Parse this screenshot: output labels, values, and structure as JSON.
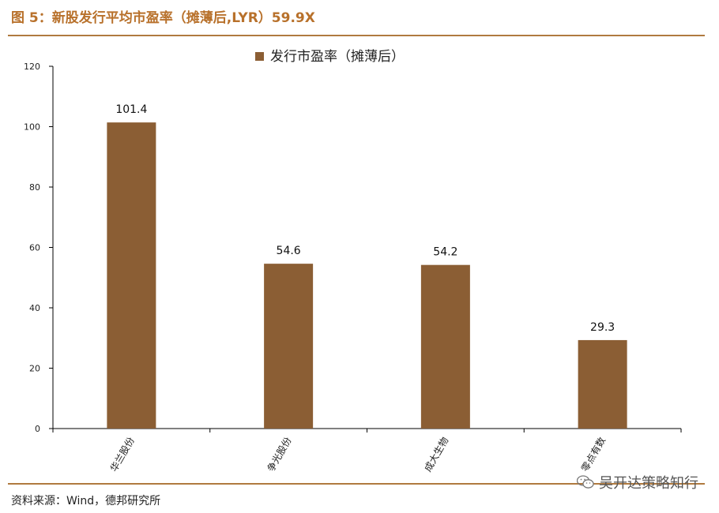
{
  "figure_title": "图 5：新股发行平均市盈率（摊薄后,LYR）59.9X",
  "source_text": "资料来源：Wind，德邦研究所",
  "watermark_text": "吴开达策略知行",
  "colors": {
    "bar": "#8b5e34",
    "title": "#b8712b",
    "rule": "#b07a3f",
    "axis": "#000000"
  },
  "chart_data": {
    "type": "bar",
    "categories": [
      "华兰股份",
      "争光股份",
      "成大生物",
      "零点有数"
    ],
    "series": [
      {
        "name": "发行市盈率（摊薄后）",
        "values": [
          101.4,
          54.6,
          54.2,
          29.3
        ]
      }
    ],
    "data_labels": [
      "101.4",
      "54.6",
      "54.2",
      "29.3"
    ],
    "yticks": [
      0,
      20,
      40,
      60,
      80,
      100,
      120
    ],
    "ylim": [
      0,
      120
    ],
    "title": "",
    "xlabel": "",
    "ylabel": "",
    "legend_position": "top-center",
    "grid": false
  }
}
